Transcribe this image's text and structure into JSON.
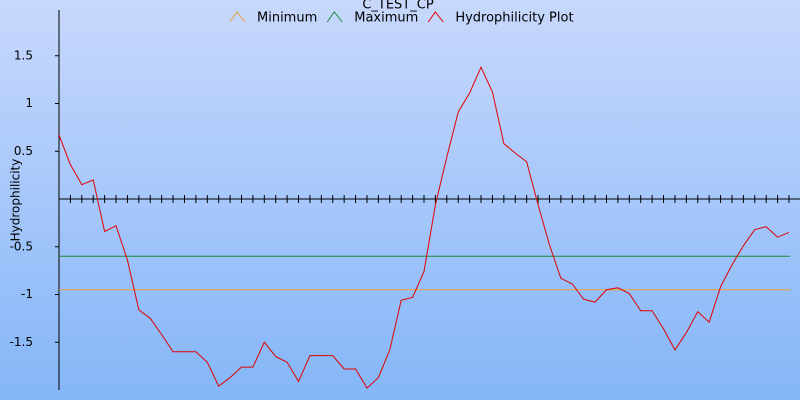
{
  "chart_data": {
    "type": "line",
    "title": "C_TEST_CP",
    "y_label": "Hydrophilicity",
    "ylim": [
      -2,
      2
    ],
    "yticks": [
      -1.5,
      -1,
      -0.5,
      0.5,
      1,
      1.5
    ],
    "series": [
      {
        "name": "Minimum",
        "color": "#e8a040",
        "value": -0.95
      },
      {
        "name": "Maximum",
        "color": "#1a8a3a",
        "value": -0.6
      },
      {
        "name": "Hydrophilicity Plot",
        "color": "#e00000",
        "values": [
          0.67,
          0.36,
          0.15,
          0.2,
          -0.34,
          -0.28,
          -0.64,
          -1.16,
          -1.25,
          -1.42,
          -1.6,
          -1.6,
          -1.6,
          -1.71,
          -1.96,
          -1.87,
          -1.76,
          -1.76,
          -1.5,
          -1.65,
          -1.71,
          -1.91,
          -1.64,
          -1.64,
          -1.64,
          -1.78,
          -1.78,
          -1.98,
          -1.87,
          -1.58,
          -1.06,
          -1.03,
          -0.76,
          -0.06,
          0.44,
          0.91,
          1.11,
          1.38,
          1.12,
          0.58,
          0.48,
          0.39,
          -0.06,
          -0.48,
          -0.83,
          -0.89,
          -1.05,
          -1.08,
          -0.95,
          -0.93,
          -0.99,
          -1.17,
          -1.17,
          -1.36,
          -1.58,
          -1.4,
          -1.18,
          -1.29,
          -0.92,
          -0.69,
          -0.49,
          -0.32,
          -0.29,
          -0.4,
          -0.35
        ]
      }
    ]
  }
}
